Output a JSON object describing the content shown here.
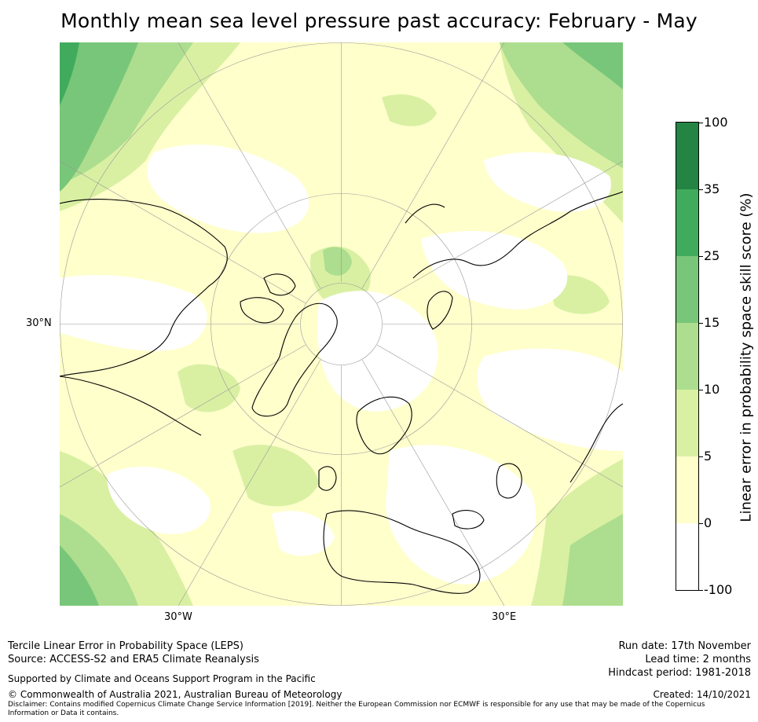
{
  "title": "Monthly mean sea level pressure past accuracy: February - May",
  "map": {
    "projection": "north-polar-stereographic",
    "lat_label": "30°N",
    "lon_labels": [
      "30°W",
      "30°E"
    ]
  },
  "colorbar": {
    "label": "Linear error in probability space skill score (%)",
    "ticks": [
      "100",
      "35",
      "25",
      "15",
      "10",
      "5",
      "0",
      "-100"
    ],
    "bins": [
      {
        "from": -100,
        "to": 0,
        "color": "#ffffff"
      },
      {
        "from": 0,
        "to": 5,
        "color": "#ffffcc"
      },
      {
        "from": 5,
        "to": 10,
        "color": "#d9f0a3"
      },
      {
        "from": 10,
        "to": 15,
        "color": "#addd8e"
      },
      {
        "from": 15,
        "to": 25,
        "color": "#78c679"
      },
      {
        "from": 25,
        "to": 35,
        "color": "#41ab5d"
      },
      {
        "from": 35,
        "to": 100,
        "color": "#238443"
      }
    ]
  },
  "footer": {
    "method": "Tercile Linear Error in Probability Space (LEPS)",
    "source": "Source: ACCESS-S2 and ERA5 Climate Reanalysis",
    "support": "Supported by Climate and Oceans Support Program in the Pacific",
    "copyright": "© Commonwealth of Australia 2021, Australian Bureau of Meteorology",
    "disclaimer_line1": "Disclaimer: Contains modified Copernicus Climate Change Service Information [2019]. Neither the European Commission nor ECMWF is responsible for any use that may be made of the Copernicus",
    "disclaimer_line2": "Information or Data it contains.",
    "run_date": "Run date: 17th November",
    "lead_time": "Lead time: 2 months",
    "hindcast": "Hindcast period: 1981-2018",
    "created": "Created: 14/10/2021"
  }
}
